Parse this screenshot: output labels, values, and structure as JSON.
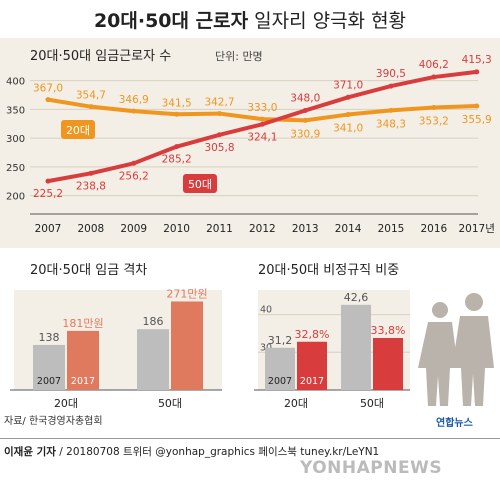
{
  "title": {
    "bold": "20대·50대 근로자",
    "normal": " 일자리 양극화 현황"
  },
  "chart_data": [
    {
      "type": "line",
      "title": "20대·50대 임금근로자 수",
      "unit_label": "단위: 만명",
      "x": [
        "2007",
        "2008",
        "2009",
        "2010",
        "2011",
        "2012",
        "2013",
        "2014",
        "2015",
        "2016",
        "2017년"
      ],
      "ylim": [
        175,
        415
      ],
      "yticks": [
        "200",
        "250",
        "300",
        "350",
        "400"
      ],
      "grid": true,
      "series": [
        {
          "name": "20대",
          "color": "#f0961e",
          "values": [
            367.0,
            354.7,
            346.9,
            341.5,
            342.7,
            333.0,
            330.9,
            341.0,
            348.3,
            353.2,
            355.9
          ],
          "labels": [
            "367,0",
            "354,7",
            "346,9",
            "341,5",
            "342,7",
            "333,0",
            "330,9",
            "341,0",
            "348,3",
            "353,2",
            "355,9"
          ]
        },
        {
          "name": "50대",
          "color": "#d93c3c",
          "values": [
            225.2,
            238.8,
            256.2,
            285.2,
            305.8,
            324.1,
            348.0,
            371.0,
            390.5,
            406.2,
            415.3
          ],
          "labels": [
            "225,2",
            "238,8",
            "256,2",
            "285,2",
            "305,8",
            "324,1",
            "348,0",
            "371,0",
            "390,5",
            "406,2",
            "415,3"
          ]
        }
      ]
    },
    {
      "type": "bar",
      "title": "20대·50대 임금 격차",
      "categories": [
        "20대",
        "50대"
      ],
      "series": [
        {
          "name": "2007",
          "color": "#bdbdbd",
          "values": [
            138,
            186
          ],
          "labels": [
            "138",
            "186"
          ]
        },
        {
          "name": "2017",
          "color": "#e07a5f",
          "values": [
            181,
            271
          ],
          "labels": [
            "181만원",
            "271만원"
          ]
        }
      ],
      "ylim": [
        0,
        300
      ]
    },
    {
      "type": "bar",
      "title": "20대·50대 비정규직 비중",
      "categories": [
        "20대",
        "50대"
      ],
      "yticks": [
        "30",
        "40"
      ],
      "series": [
        {
          "name": "2007",
          "color": "#bdbdbd",
          "values": [
            31.2,
            42.6
          ],
          "labels": [
            "31,2",
            "42,6"
          ]
        },
        {
          "name": "2017",
          "color": "#d93c3c",
          "values": [
            32.8,
            33.8
          ],
          "labels": [
            "32,8%",
            "33,8%"
          ]
        }
      ],
      "ylim": [
        20,
        46
      ]
    }
  ],
  "footer": {
    "source": "자료/ 한국경영자총협회",
    "credit_bold": "이재윤 기자",
    "credit_rest": " / 20180708  트위터 @yonhap_graphics  페이스북 tuney.kr/LeYN1",
    "logo": "연합뉴스",
    "watermark": "YONHAPNEWS"
  }
}
